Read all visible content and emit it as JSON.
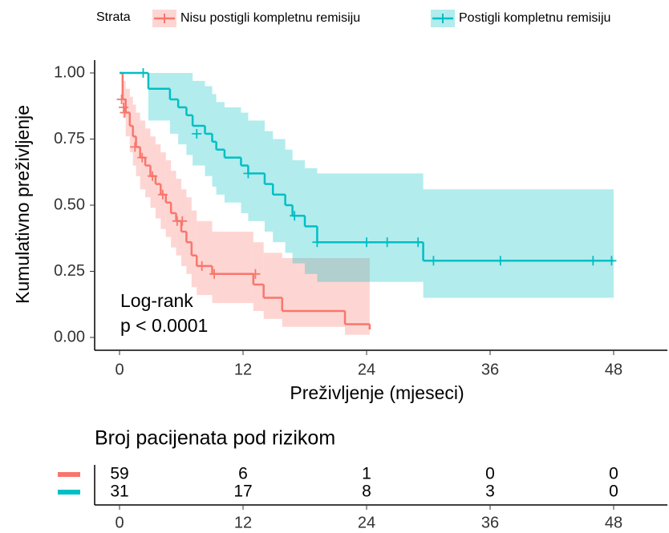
{
  "chart_data": {
    "type": "km",
    "legend_title": "Strata",
    "x_label": "Preživljenje (mjeseci)",
    "y_label": "Kumulativno preživljenje",
    "annotations": [
      "Log-rank",
      "p < 0.0001"
    ],
    "xlim": [
      0,
      48
    ],
    "xticks": [
      0,
      12,
      24,
      36,
      48
    ],
    "ylim": [
      0,
      1
    ],
    "yticks": [
      {
        "value": 0,
        "label": "0.00"
      },
      {
        "value": 0.25,
        "label": "0.25"
      },
      {
        "value": 0.5,
        "label": "0.50"
      },
      {
        "value": 0.75,
        "label": "0.75"
      },
      {
        "value": 1,
        "label": "1.00"
      }
    ],
    "series": [
      {
        "name": "Nisu postigli kompletnu remisiju",
        "color": "#F8766D",
        "time": [
          0,
          0.3,
          0.6,
          1.0,
          1.3,
          1.6,
          2.0,
          2.5,
          3.0,
          3.5,
          4.0,
          4.5,
          5.0,
          5.5,
          6.0,
          6.5,
          7.0,
          7.5,
          9.0,
          13.0,
          14.0,
          15.8,
          21.9,
          24.3
        ],
        "surv": [
          1.0,
          0.9,
          0.85,
          0.8,
          0.76,
          0.72,
          0.68,
          0.65,
          0.61,
          0.58,
          0.54,
          0.51,
          0.47,
          0.44,
          0.4,
          0.36,
          0.31,
          0.27,
          0.24,
          0.2,
          0.15,
          0.1,
          0.05,
          0.03
        ],
        "lower": [
          1.0,
          0.83,
          0.76,
          0.7,
          0.65,
          0.61,
          0.56,
          0.53,
          0.49,
          0.45,
          0.41,
          0.38,
          0.34,
          0.31,
          0.27,
          0.24,
          0.19,
          0.16,
          0.13,
          0.1,
          0.07,
          0.04,
          0.01,
          0.0
        ],
        "upper": [
          1.0,
          0.97,
          0.94,
          0.91,
          0.88,
          0.85,
          0.82,
          0.79,
          0.76,
          0.73,
          0.7,
          0.67,
          0.63,
          0.6,
          0.56,
          0.53,
          0.48,
          0.44,
          0.4,
          0.36,
          0.32,
          0.3,
          0.3,
          0.3
        ],
        "censor_time": [
          0.2,
          0.4,
          0.5,
          1.5,
          2.2,
          3.2,
          4.2,
          5.6,
          6.1,
          8.0,
          9.2,
          13.2
        ],
        "censor_surv": [
          0.9,
          0.87,
          0.85,
          0.72,
          0.68,
          0.61,
          0.54,
          0.44,
          0.44,
          0.27,
          0.24,
          0.24
        ]
      },
      {
        "name": "Postigli kompletnu remisiju",
        "color": "#00BFC4",
        "time": [
          0,
          2.8,
          4.9,
          5.7,
          6.5,
          7.1,
          8.3,
          9.0,
          9.4,
          10.2,
          11.8,
          12.5,
          14.1,
          14.9,
          16.1,
          16.8,
          18.0,
          19.2,
          29.5,
          48
        ],
        "surv": [
          1.0,
          0.94,
          0.9,
          0.87,
          0.84,
          0.8,
          0.77,
          0.74,
          0.71,
          0.68,
          0.65,
          0.62,
          0.58,
          0.54,
          0.5,
          0.46,
          0.42,
          0.36,
          0.29,
          0.29
        ],
        "lower": [
          1.0,
          0.82,
          0.77,
          0.73,
          0.69,
          0.65,
          0.61,
          0.57,
          0.54,
          0.51,
          0.47,
          0.44,
          0.4,
          0.36,
          0.32,
          0.28,
          0.24,
          0.21,
          0.15,
          0.15
        ],
        "upper": [
          1.0,
          1.0,
          1.0,
          1.0,
          1.0,
          0.97,
          0.95,
          0.92,
          0.89,
          0.87,
          0.85,
          0.82,
          0.78,
          0.75,
          0.71,
          0.67,
          0.64,
          0.62,
          0.56,
          0.56
        ],
        "censor_time": [
          2.3,
          7.5,
          12.5,
          17.0,
          19.2,
          24.0,
          26.0,
          29.0,
          30.5,
          37.0,
          46.0,
          47.8
        ],
        "censor_surv": [
          1.0,
          0.77,
          0.62,
          0.46,
          0.36,
          0.36,
          0.36,
          0.36,
          0.29,
          0.29,
          0.29,
          0.29
        ]
      }
    ],
    "risk_table": {
      "title": "Broj pacijenata pod rizikom",
      "xticks": [
        0,
        12,
        24,
        36,
        48
      ],
      "rows": [
        [
          59,
          6,
          1,
          0,
          0
        ],
        [
          31,
          17,
          8,
          3,
          0
        ]
      ]
    }
  }
}
